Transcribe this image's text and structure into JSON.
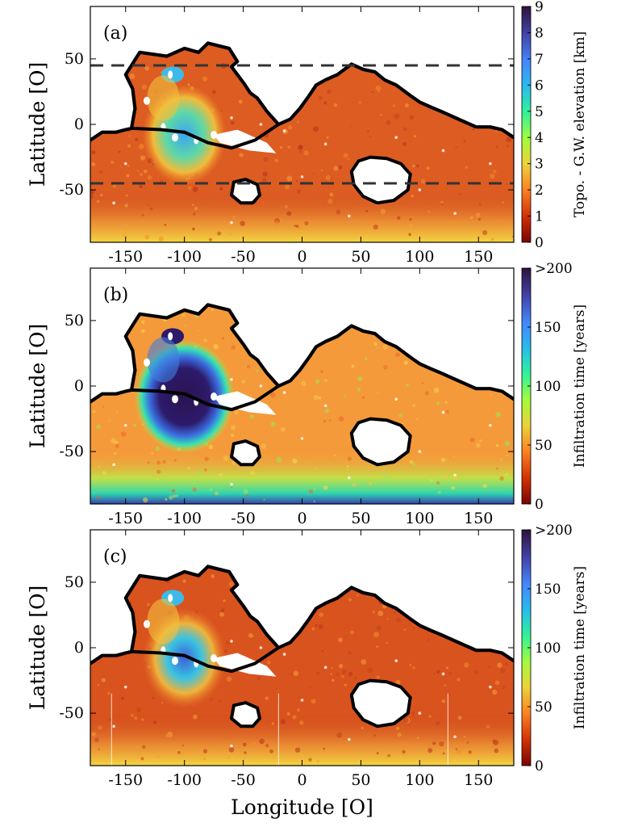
{
  "figure": {
    "xlabel": "Longitude [O]",
    "ylabel": "Latitude [O]"
  },
  "chart_data": [
    {
      "type": "heatmap",
      "panel_label": "(a)",
      "xlabel": "",
      "ylabel": "Latitude [O]",
      "xlim": [
        -180,
        180
      ],
      "ylim": [
        -90,
        90
      ],
      "xticks": [
        "-150",
        "-100",
        "-50",
        "0",
        "50",
        "100",
        "150"
      ],
      "yticks": [
        "50",
        "0",
        "-50"
      ],
      "colorbar": {
        "label": "Topo. - G.W. elevation [km]",
        "range": [
          0,
          9
        ],
        "ticks": [
          "9",
          "8",
          "7",
          "6",
          "5",
          "4",
          "3",
          "2",
          "1",
          "0"
        ],
        "colormap": "turbo-reversed",
        "stops": [
          "#7a0403",
          "#d23105",
          "#fb8022",
          "#edd03a",
          "#a4fc3c",
          "#32f298",
          "#28bceb",
          "#4686fb",
          "#4145ab",
          "#30123b"
        ]
      },
      "reference_lines": [
        {
          "type": "horizontal",
          "y": 45,
          "style": "dashed"
        },
        {
          "type": "horizontal",
          "y": -45,
          "style": "dashed"
        }
      ],
      "dominant_color": "#dd5c22"
    },
    {
      "type": "heatmap",
      "panel_label": "(b)",
      "xlabel": "",
      "ylabel": "Latitude [O]",
      "xlim": [
        -180,
        180
      ],
      "ylim": [
        -90,
        90
      ],
      "xticks": [
        "-150",
        "-100",
        "-50",
        "0",
        "50",
        "100",
        "150"
      ],
      "yticks": [
        "50",
        "0",
        "-50"
      ],
      "colorbar": {
        "label": "Infiltration time [years]",
        "range": [
          0,
          200
        ],
        "ticks": [
          ">200",
          "150",
          "100",
          "50",
          "0"
        ],
        "colormap": "turbo-reversed",
        "stops": [
          "#7a0403",
          "#d23105",
          "#fb8022",
          "#edd03a",
          "#a4fc3c",
          "#32f298",
          "#28bceb",
          "#4686fb",
          "#4145ab",
          "#30123b"
        ]
      },
      "dominant_color": "#f49a3a"
    },
    {
      "type": "heatmap",
      "panel_label": "(c)",
      "xlabel": "Longitude [O]",
      "ylabel": "Latitude [O]",
      "xlim": [
        -180,
        180
      ],
      "ylim": [
        -90,
        90
      ],
      "xticks": [
        "-150",
        "-100",
        "-50",
        "0",
        "50",
        "100",
        "150"
      ],
      "yticks": [
        "50",
        "0",
        "-50"
      ],
      "colorbar": {
        "label": "Infiltration time [years]",
        "range": [
          0,
          200
        ],
        "ticks": [
          ">200",
          "150",
          "100",
          "50",
          "0"
        ],
        "colormap": "turbo-reversed",
        "stops": [
          "#7a0403",
          "#d23105",
          "#fb8022",
          "#edd03a",
          "#a4fc3c",
          "#32f298",
          "#28bceb",
          "#4686fb",
          "#4145ab",
          "#30123b"
        ]
      },
      "dominant_color": "#d9531e"
    }
  ]
}
